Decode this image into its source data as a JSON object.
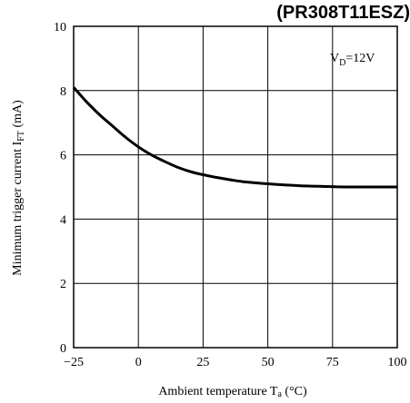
{
  "chart_data": {
    "type": "line",
    "title": "(PR308T11ESZ)",
    "xlabel": {
      "main": "Ambient temperature  T",
      "sub": "a",
      "tail": " (°C)"
    },
    "ylabel": {
      "main": "Minimum trigger current I",
      "sub": "FT",
      "tail": " (mA)"
    },
    "annotation": {
      "main": "V",
      "sub": "D",
      "tail": "=12V"
    },
    "xlim": [
      -25,
      100
    ],
    "ylim": [
      0,
      10
    ],
    "xticks": [
      -25,
      0,
      25,
      50,
      75,
      100
    ],
    "xtick_labels": [
      "−25",
      "0",
      "25",
      "50",
      "75",
      "100"
    ],
    "yticks": [
      0,
      2,
      4,
      6,
      8,
      10
    ],
    "ytick_labels": [
      "0",
      "2",
      "4",
      "6",
      "8",
      "10"
    ],
    "grid": true,
    "series": [
      {
        "x": [
          -25,
          -20,
          -15,
          -10,
          -5,
          0,
          5,
          10,
          15,
          20,
          25,
          30,
          35,
          40,
          45,
          50,
          55,
          60,
          65,
          70,
          75,
          80,
          85,
          90,
          95,
          100
        ],
        "y": [
          8.1,
          7.65,
          7.25,
          6.9,
          6.55,
          6.25,
          6.0,
          5.8,
          5.62,
          5.48,
          5.38,
          5.3,
          5.23,
          5.17,
          5.13,
          5.1,
          5.07,
          5.05,
          5.03,
          5.02,
          5.01,
          5.0,
          5.0,
          5.0,
          5.0,
          5.0
        ],
        "color": "#000000"
      }
    ]
  }
}
